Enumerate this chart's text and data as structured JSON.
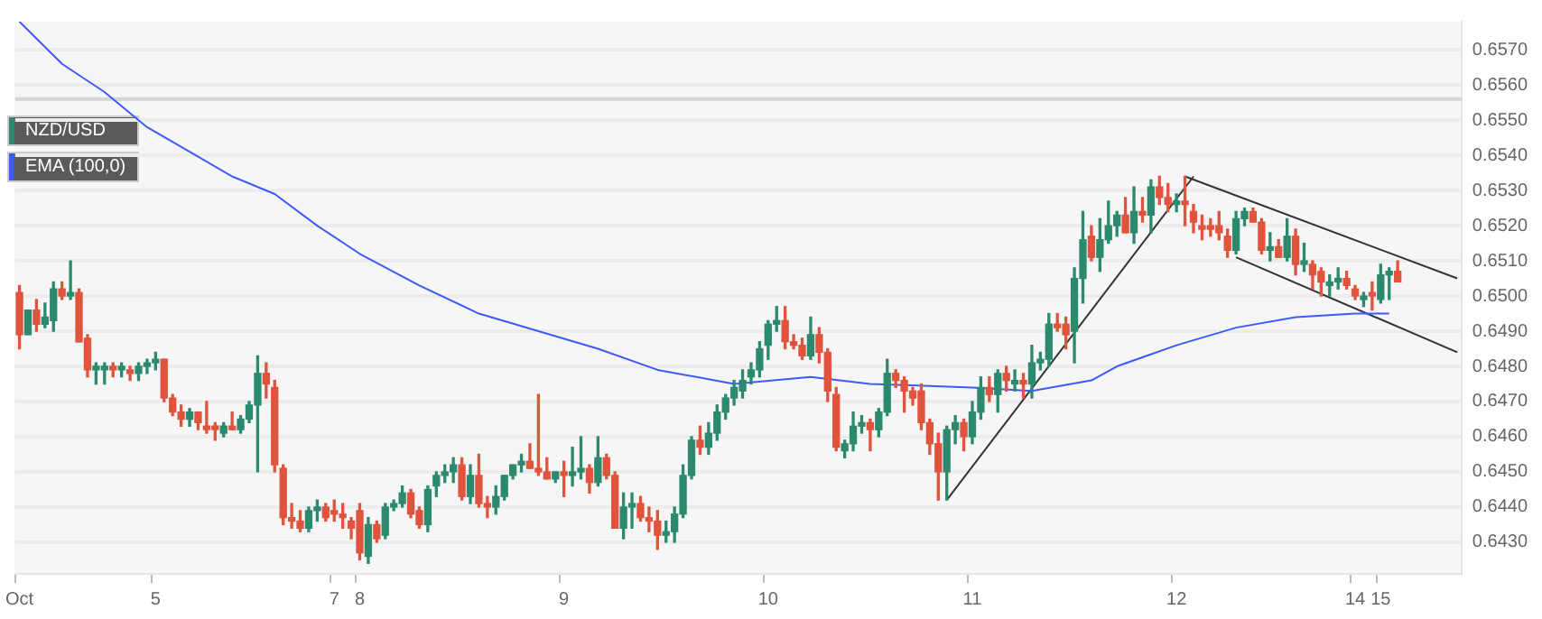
{
  "chart_data": {
    "type": "candlestick",
    "categories": [
      "Oct",
      null,
      null,
      null,
      null,
      null,
      null,
      null,
      null,
      null,
      null,
      null,
      null,
      null,
      null,
      null,
      "5",
      null,
      null,
      null,
      null,
      null,
      null,
      null,
      null,
      null,
      null,
      null,
      null,
      null,
      null,
      null,
      null,
      null,
      null,
      null,
      null,
      "7",
      null,
      null,
      "8",
      null,
      null,
      null,
      null,
      null,
      null,
      null,
      null,
      null,
      null,
      null,
      null,
      null,
      null,
      null,
      null,
      null,
      null,
      null,
      null,
      null,
      null,
      null,
      "9",
      null,
      null,
      null,
      null,
      null,
      null,
      null,
      null,
      null,
      null,
      null,
      null,
      null,
      null,
      null,
      null,
      null,
      null,
      null,
      null,
      null,
      null,
      null,
      "10",
      null,
      null,
      null,
      null,
      null,
      null,
      null,
      null,
      null,
      null,
      null,
      null,
      null,
      null,
      null,
      null,
      null,
      null,
      null,
      null,
      null,
      null,
      null,
      "11",
      null,
      null,
      null,
      null,
      null,
      null,
      null,
      null,
      null,
      null,
      null,
      null,
      null,
      null,
      null,
      null,
      null,
      null,
      null,
      null,
      null,
      null,
      null,
      "12",
      null,
      null,
      null,
      null,
      null,
      null,
      null,
      null,
      null,
      null,
      null,
      null,
      null,
      null,
      null,
      null,
      null,
      null,
      null,
      null,
      "14",
      null,
      null,
      "15",
      null,
      null,
      null,
      null,
      null,
      null,
      null,
      null,
      null
    ],
    "series": [
      {
        "name": "NZD/USD",
        "type": "candlestick",
        "color": "#2b8a6e",
        "colors": [
          "#e0533d",
          "#2b8a6e",
          "#e0533d",
          "#2b8a6e",
          "#2b8a6e",
          "#e0533d",
          "#2b8a6e",
          "#e0533d",
          "#e0533d",
          "#2b8a6e",
          "#2b8a6e",
          "#e0533d",
          "#2b8a6e",
          "#e0533d",
          "#2b8a6e",
          "#2b8a6e",
          "#2b8a6e",
          "#e0533d",
          "#e0533d",
          "#e0533d",
          "#2b8a6e",
          "#e0533d",
          "#e0533d",
          "#e0533d",
          "#2b8a6e",
          "#e0533d",
          "#2b8a6e",
          "#2b8a6e",
          "#2b8a6e",
          "#e0533d",
          "#e0533d",
          "#e0533d",
          "#e0533d",
          "#e0533d",
          "#2b8a6e",
          "#2b8a6e",
          "#e0533d",
          "#e0533d",
          "#e0533d",
          "#e0533d",
          "#e0533d",
          "#2b8a6e",
          "#e0533d",
          "#2b8a6e",
          "#2b8a6e",
          "#2b8a6e",
          "#e0533d",
          "#e0533d",
          "#2b8a6e",
          "#2b8a6e",
          "#2b8a6e",
          "#2b8a6e",
          "#e0533d",
          "#2b8a6e",
          "#e0533d",
          "#e0533d",
          "#2b8a6e",
          "#2b8a6e",
          "#2b8a6e",
          "#2b8a6e",
          "#e0533d",
          "#e0533d",
          "#e0533d",
          "#2b8a6e",
          "#e0533d",
          "#2b8a6e",
          "#2b8a6e",
          "#e0533d",
          "#2b8a6e",
          "#e0533d",
          "#e0533d",
          "#2b8a6e",
          "#2b8a6e",
          "#e0533d",
          "#e0533d",
          "#e0533d",
          "#2b8a6e",
          "#2b8a6e",
          "#2b8a6e",
          "#2b8a6e",
          "#e0533d",
          "#2b8a6e",
          "#2b8a6e",
          "#2b8a6e",
          "#2b8a6e",
          "#2b8a6e",
          "#2b8a6e",
          "#2b8a6e",
          "#2b8a6e",
          "#2b8a6e",
          "#e0533d",
          "#e0533d",
          "#e0533d",
          "#2b8a6e",
          "#e0533d",
          "#e0533d",
          "#e0533d",
          "#2b8a6e",
          "#2b8a6e",
          "#2b8a6e",
          "#e0533d",
          "#2b8a6e",
          "#2b8a6e",
          "#e0533d",
          "#e0533d",
          "#e0533d",
          "#e0533d",
          "#e0533d",
          "#e0533d",
          "#2b8a6e",
          "#2b8a6e",
          "#e0533d",
          "#2b8a6e",
          "#2b8a6e",
          "#e0533d",
          "#2b8a6e",
          "#e0533d",
          "#2b8a6e",
          "#e0533d",
          "#2b8a6e",
          "#2b8a6e",
          "#2b8a6e",
          "#e0533d",
          "#e0533d",
          "#2b8a6e",
          "#2b8a6e",
          "#e0533d",
          "#2b8a6e",
          "#2b8a6e",
          "#2b8a6e",
          "#e0533d",
          "#2b8a6e",
          "#e0533d",
          "#2b8a6e",
          "#e0533d",
          "#e0533d",
          "#2b8a6e",
          "#e0533d",
          "#e0533d",
          "#e0533d",
          "#e0533d",
          "#e0533d",
          "#e0533d",
          "#2b8a6e",
          "#2b8a6e",
          "#e0533d",
          "#e0533d",
          "#2b8a6e",
          "#e0533d",
          "#2b8a6e",
          "#e0533d",
          "#2b8a6e",
          "#e0533d",
          "#e0533d",
          "#2b8a6e",
          "#2b8a6e",
          "#e0533d",
          "#e0533d",
          "#2b8a6e",
          "#e0533d",
          "#2b8a6e",
          "#2b8a6e",
          "#e0533d",
          null,
          null,
          null,
          null,
          null,
          null,
          null
        ],
        "ohlc": [
          [
            0.6501,
            0.6503,
            0.6485,
            0.6489
          ],
          [
            0.6489,
            0.6496,
            0.6489,
            0.6496
          ],
          [
            0.6496,
            0.6499,
            0.649,
            0.6492
          ],
          [
            0.6492,
            0.6498,
            0.6491,
            0.6494
          ],
          [
            0.6493,
            0.6504,
            0.649,
            0.6502
          ],
          [
            0.6502,
            0.6504,
            0.6499,
            0.65
          ],
          [
            0.65,
            0.651,
            0.6499,
            0.6501
          ],
          [
            0.6501,
            0.6502,
            0.6487,
            0.6487
          ],
          [
            0.6488,
            0.6489,
            0.6477,
            0.6479
          ],
          [
            0.6479,
            0.6481,
            0.6475,
            0.648
          ],
          [
            0.6479,
            0.6481,
            0.6475,
            0.648
          ],
          [
            0.648,
            0.6481,
            0.6477,
            0.6479
          ],
          [
            0.6479,
            0.6481,
            0.6477,
            0.648
          ],
          [
            0.6479,
            0.648,
            0.6476,
            0.6478
          ],
          [
            0.6478,
            0.6481,
            0.6476,
            0.648
          ],
          [
            0.648,
            0.6482,
            0.6478,
            0.6481
          ],
          [
            0.6481,
            0.6484,
            0.6479,
            0.6482
          ],
          [
            0.6482,
            0.6482,
            0.647,
            0.6471
          ],
          [
            0.6471,
            0.6472,
            0.6466,
            0.6467
          ],
          [
            0.6467,
            0.6469,
            0.6463,
            0.6465
          ],
          [
            0.6465,
            0.6468,
            0.6463,
            0.6467
          ],
          [
            0.6467,
            0.6467,
            0.6462,
            0.6464
          ],
          [
            0.6463,
            0.647,
            0.6461,
            0.6462
          ],
          [
            0.6463,
            0.6464,
            0.6459,
            0.6462
          ],
          [
            0.6461,
            0.6464,
            0.646,
            0.6463
          ],
          [
            0.6463,
            0.6467,
            0.6462,
            0.6462
          ],
          [
            0.6462,
            0.6466,
            0.6461,
            0.6465
          ],
          [
            0.6465,
            0.647,
            0.6464,
            0.6469
          ],
          [
            0.6469,
            0.6483,
            0.645,
            0.6478
          ],
          [
            0.6478,
            0.6481,
            0.6471,
            0.6475
          ],
          [
            0.6474,
            0.6476,
            0.645,
            0.6452
          ],
          [
            0.6451,
            0.6452,
            0.6435,
            0.6437
          ],
          [
            0.6437,
            0.6441,
            0.6434,
            0.6436
          ],
          [
            0.6436,
            0.6439,
            0.6433,
            0.6434
          ],
          [
            0.6434,
            0.644,
            0.6433,
            0.6439
          ],
          [
            0.6439,
            0.6442,
            0.6436,
            0.644
          ],
          [
            0.644,
            0.6441,
            0.6436,
            0.6437
          ],
          [
            0.6439,
            0.6442,
            0.6436,
            0.6438
          ],
          [
            0.6438,
            0.6441,
            0.6434,
            0.6437
          ],
          [
            0.6436,
            0.6437,
            0.6431,
            0.6434
          ],
          [
            0.6439,
            0.6441,
            0.6425,
            0.6427
          ],
          [
            0.6426,
            0.6437,
            0.6424,
            0.6435
          ],
          [
            0.6435,
            0.6436,
            0.643,
            0.6431
          ],
          [
            0.6432,
            0.6441,
            0.6431,
            0.644
          ],
          [
            0.644,
            0.6442,
            0.6439,
            0.6441
          ],
          [
            0.6441,
            0.6446,
            0.644,
            0.6444
          ],
          [
            0.6444,
            0.6445,
            0.6437,
            0.6438
          ],
          [
            0.6439,
            0.644,
            0.6434,
            0.6435
          ],
          [
            0.6435,
            0.6446,
            0.6433,
            0.6445
          ],
          [
            0.6446,
            0.645,
            0.6443,
            0.6449
          ],
          [
            0.6449,
            0.6452,
            0.6447,
            0.645
          ],
          [
            0.645,
            0.6454,
            0.6447,
            0.6452
          ],
          [
            0.6452,
            0.6454,
            0.6442,
            0.6443
          ],
          [
            0.6443,
            0.6452,
            0.6441,
            0.6449
          ],
          [
            0.6449,
            0.6455,
            0.644,
            0.6441
          ],
          [
            0.6441,
            0.6443,
            0.6437,
            0.644
          ],
          [
            0.644,
            0.6446,
            0.6438,
            0.6443
          ],
          [
            0.6443,
            0.6449,
            0.6442,
            0.6449
          ],
          [
            0.6449,
            0.6452,
            0.6448,
            0.6452
          ],
          [
            0.6452,
            0.6455,
            0.645,
            0.6453
          ],
          [
            0.6453,
            0.6458,
            0.6451,
            0.6451
          ],
          [
            0.6451,
            0.6472,
            0.6449,
            0.645
          ],
          [
            0.645,
            0.6454,
            0.6448,
            0.6448
          ],
          [
            0.6448,
            0.645,
            0.6447,
            0.645
          ],
          [
            0.645,
            0.6453,
            0.6443,
            0.6449
          ],
          [
            0.6449,
            0.6457,
            0.6446,
            0.645
          ],
          [
            0.645,
            0.646,
            0.6448,
            0.6451
          ],
          [
            0.6451,
            0.6452,
            0.6444,
            0.6447
          ],
          [
            0.6447,
            0.646,
            0.6446,
            0.6454
          ],
          [
            0.6454,
            0.6455,
            0.6448,
            0.6449
          ],
          [
            0.6449,
            0.645,
            0.6434,
            0.6434
          ],
          [
            0.6434,
            0.6444,
            0.6431,
            0.644
          ],
          [
            0.644,
            0.6444,
            0.6434,
            0.6441
          ],
          [
            0.6441,
            0.6443,
            0.6436,
            0.6437
          ],
          [
            0.6437,
            0.644,
            0.6433,
            0.6436
          ],
          [
            0.6436,
            0.6439,
            0.6428,
            0.6432
          ],
          [
            0.6432,
            0.6436,
            0.643,
            0.6433
          ],
          [
            0.6433,
            0.644,
            0.643,
            0.6438
          ],
          [
            0.6438,
            0.6452,
            0.6437,
            0.6449
          ],
          [
            0.6449,
            0.646,
            0.6448,
            0.6459
          ],
          [
            0.6459,
            0.6463,
            0.6455,
            0.6457
          ],
          [
            0.6457,
            0.6464,
            0.6455,
            0.6461
          ],
          [
            0.6461,
            0.6469,
            0.6459,
            0.6467
          ],
          [
            0.6467,
            0.6472,
            0.6465,
            0.6471
          ],
          [
            0.6471,
            0.6476,
            0.6469,
            0.6474
          ],
          [
            0.6473,
            0.6479,
            0.6471,
            0.6476
          ],
          [
            0.6477,
            0.6481,
            0.6475,
            0.6479
          ],
          [
            0.6479,
            0.6487,
            0.6477,
            0.6485
          ],
          [
            0.6486,
            0.6493,
            0.6482,
            0.6492
          ],
          [
            0.6492,
            0.6497,
            0.649,
            0.6493
          ],
          [
            0.6493,
            0.6497,
            0.6485,
            0.6487
          ],
          [
            0.6487,
            0.6489,
            0.6485,
            0.6486
          ],
          [
            0.6486,
            0.6488,
            0.6482,
            0.6483
          ],
          [
            0.6483,
            0.6494,
            0.6482,
            0.6489
          ],
          [
            0.6489,
            0.6491,
            0.6481,
            0.6484
          ],
          [
            0.6484,
            0.6485,
            0.647,
            0.6473
          ],
          [
            0.6472,
            0.6474,
            0.6456,
            0.6457
          ],
          [
            0.6456,
            0.6459,
            0.6454,
            0.6458
          ],
          [
            0.6458,
            0.6467,
            0.6456,
            0.6463
          ],
          [
            0.6463,
            0.6466,
            0.6461,
            0.6464
          ],
          [
            0.6464,
            0.6465,
            0.6456,
            0.6462
          ],
          [
            0.6462,
            0.6468,
            0.646,
            0.6467
          ],
          [
            0.6467,
            0.6482,
            0.6466,
            0.6478
          ],
          [
            0.6478,
            0.6479,
            0.6474,
            0.6476
          ],
          [
            0.6476,
            0.6477,
            0.6467,
            0.6473
          ],
          [
            0.6473,
            0.6474,
            0.6469,
            0.6471
          ],
          [
            0.6473,
            0.6475,
            0.6462,
            0.6464
          ],
          [
            0.6464,
            0.6465,
            0.6455,
            0.6458
          ],
          [
            0.6458,
            0.6461,
            0.6442,
            0.645
          ],
          [
            0.645,
            0.6463,
            0.6442,
            0.6462
          ],
          [
            0.6462,
            0.6466,
            0.6458,
            0.6464
          ],
          [
            0.6464,
            0.6465,
            0.6456,
            0.646
          ],
          [
            0.646,
            0.647,
            0.6458,
            0.6467
          ],
          [
            0.6467,
            0.6477,
            0.6465,
            0.6474
          ],
          [
            0.6474,
            0.6477,
            0.647,
            0.6472
          ],
          [
            0.6472,
            0.6479,
            0.6467,
            0.6478
          ],
          [
            0.6478,
            0.648,
            0.6473,
            0.6476
          ],
          [
            0.6475,
            0.6479,
            0.6473,
            0.6476
          ],
          [
            0.6476,
            0.6478,
            0.6471,
            0.6475
          ],
          [
            0.6475,
            0.6486,
            0.6471,
            0.6481
          ],
          [
            0.6481,
            0.6484,
            0.6479,
            0.6482
          ],
          [
            0.6482,
            0.6495,
            0.648,
            0.6492
          ],
          [
            0.6492,
            0.6495,
            0.649,
            0.6491
          ],
          [
            0.6492,
            0.6494,
            0.6485,
            0.6489
          ],
          [
            0.649,
            0.6508,
            0.6481,
            0.6505
          ],
          [
            0.6505,
            0.6524,
            0.6498,
            0.6516
          ],
          [
            0.6517,
            0.652,
            0.651,
            0.6511
          ],
          [
            0.6511,
            0.6522,
            0.6507,
            0.6516
          ],
          [
            0.6516,
            0.6527,
            0.6515,
            0.652
          ],
          [
            0.652,
            0.6524,
            0.6517,
            0.6523
          ],
          [
            0.6523,
            0.6528,
            0.6518,
            0.6518
          ],
          [
            0.6518,
            0.6531,
            0.6515,
            0.6524
          ],
          [
            0.6524,
            0.6528,
            0.6521,
            0.6523
          ],
          [
            0.6523,
            0.6533,
            0.6518,
            0.6531
          ],
          [
            0.6531,
            0.6534,
            0.6526,
            0.6528
          ],
          [
            0.6528,
            0.6532,
            0.6524,
            0.6526
          ],
          [
            0.6526,
            0.6529,
            0.6524,
            0.6527
          ],
          [
            0.6527,
            0.6534,
            0.652,
            0.6526
          ],
          [
            0.6524,
            0.6526,
            0.6518,
            0.6521
          ],
          [
            0.652,
            0.6523,
            0.6516,
            0.6519
          ],
          [
            0.652,
            0.6522,
            0.6517,
            0.6519
          ],
          [
            0.652,
            0.6524,
            0.6516,
            0.6518
          ],
          [
            0.6517,
            0.6519,
            0.6511,
            0.6513
          ],
          [
            0.6513,
            0.6524,
            0.6512,
            0.6522
          ],
          [
            0.6522,
            0.6525,
            0.652,
            0.6524
          ],
          [
            0.6524,
            0.6525,
            0.6521,
            0.6521
          ],
          [
            0.6521,
            0.6522,
            0.6512,
            0.6513
          ],
          [
            0.6513,
            0.6518,
            0.651,
            0.6514
          ],
          [
            0.6514,
            0.6516,
            0.6511,
            0.6511
          ],
          [
            0.6511,
            0.6522,
            0.651,
            0.6517
          ],
          [
            0.6517,
            0.6519,
            0.6506,
            0.6509
          ],
          [
            0.6509,
            0.6515,
            0.6507,
            0.651
          ],
          [
            0.6509,
            0.651,
            0.6502,
            0.6506
          ],
          [
            0.6507,
            0.6508,
            0.65,
            0.6504
          ],
          [
            0.6503,
            0.6506,
            0.65,
            0.6504
          ],
          [
            0.6504,
            0.6508,
            0.6502,
            0.6505
          ],
          [
            0.6505,
            0.6507,
            0.6502,
            0.6503
          ],
          [
            0.6502,
            0.6503,
            0.6499,
            0.65
          ],
          [
            0.6499,
            0.6501,
            0.6497,
            0.65
          ],
          [
            0.6501,
            0.6504,
            0.6496,
            0.65
          ],
          [
            0.6499,
            0.6509,
            0.6498,
            0.6506
          ],
          [
            0.6506,
            0.6508,
            0.6499,
            0.6507
          ],
          [
            0.6507,
            0.651,
            0.6504,
            0.6504
          ],
          null,
          null,
          null,
          null,
          null,
          null,
          null
        ]
      },
      {
        "name": "EMA (100,0)",
        "type": "line",
        "color": "#3d5afe",
        "values": [
          0.6578,
          null,
          null,
          null,
          null,
          0.6566,
          null,
          null,
          null,
          null,
          0.6558,
          null,
          null,
          null,
          null,
          0.6548,
          null,
          null,
          null,
          null,
          0.6541,
          null,
          null,
          null,
          null,
          0.6534,
          null,
          null,
          null,
          null,
          0.6529,
          null,
          null,
          null,
          null,
          0.652,
          null,
          null,
          null,
          null,
          0.6512,
          null,
          null,
          null,
          null,
          null,
          null,
          0.6503,
          null,
          null,
          null,
          null,
          null,
          null,
          0.6495,
          null,
          null,
          null,
          null,
          null,
          null,
          0.649,
          null,
          null,
          null,
          null,
          null,
          null,
          0.6485,
          null,
          null,
          null,
          null,
          null,
          null,
          0.6479,
          null,
          null,
          null,
          null,
          null,
          null,
          null,
          null,
          0.6475,
          null,
          null,
          null,
          null,
          null,
          null,
          null,
          null,
          0.6477,
          null,
          null,
          null,
          null,
          null,
          null,
          0.6475,
          null,
          null,
          null,
          null,
          null,
          null,
          null,
          null,
          null,
          null,
          null,
          0.6474,
          null,
          null,
          null,
          null,
          null,
          null,
          0.6473,
          null,
          null,
          null,
          null,
          null,
          null,
          0.6476,
          null,
          null,
          0.648,
          null,
          null,
          null,
          null,
          null,
          null,
          0.6486,
          null,
          null,
          null,
          null,
          null,
          null,
          0.6491,
          null,
          null,
          null,
          null,
          null,
          null,
          0.6494,
          null,
          null,
          null,
          null,
          null,
          null,
          0.6495,
          null,
          null,
          null,
          0.6495,
          null,
          null,
          null,
          null,
          null,
          null,
          null,
          null
        ]
      },
      {
        "type": "line",
        "color": "#333333",
        "values": [
          null,
          null,
          null,
          null,
          null,
          null,
          null,
          null,
          null,
          null,
          null,
          null,
          null,
          null,
          null,
          null,
          null,
          null,
          null,
          null,
          null,
          null,
          null,
          null,
          null,
          null,
          null,
          null,
          null,
          null,
          null,
          null,
          null,
          null,
          null,
          null,
          null,
          null,
          null,
          null,
          null,
          null,
          null,
          null,
          null,
          null,
          null,
          null,
          null,
          null,
          null,
          null,
          null,
          null,
          null,
          null,
          null,
          null,
          null,
          null,
          null,
          null,
          null,
          null,
          null,
          null,
          null,
          null,
          null,
          null,
          null,
          null,
          null,
          null,
          null,
          null,
          null,
          null,
          null,
          null,
          null,
          null,
          null,
          null,
          null,
          null,
          null,
          null,
          null,
          null,
          null,
          null,
          null,
          null,
          null,
          null,
          null,
          null,
          null,
          null,
          null,
          null,
          null,
          null,
          null,
          null,
          null,
          null,
          null,
          0.6442,
          null,
          null,
          null,
          null,
          null,
          null,
          null,
          null,
          null,
          null,
          null,
          null,
          null,
          null,
          null,
          null,
          null,
          null,
          null,
          null,
          null,
          null,
          null,
          null,
          null,
          null,
          null,
          null,
          0.6534,
          null,
          null,
          null,
          null,
          null,
          null,
          null,
          null,
          null,
          null,
          null,
          null,
          null,
          null,
          null,
          null,
          null,
          null,
          null,
          null,
          null,
          null,
          null,
          null,
          null,
          null,
          null,
          null,
          null,
          null,
          null
        ]
      },
      {
        "type": "line",
        "color": "#333333",
        "values": [
          null,
          null,
          null,
          null,
          null,
          null,
          null,
          null,
          null,
          null,
          null,
          null,
          null,
          null,
          null,
          null,
          null,
          null,
          null,
          null,
          null,
          null,
          null,
          null,
          null,
          null,
          null,
          null,
          null,
          null,
          null,
          null,
          null,
          null,
          null,
          null,
          null,
          null,
          null,
          null,
          null,
          null,
          null,
          null,
          null,
          null,
          null,
          null,
          null,
          null,
          null,
          null,
          null,
          null,
          null,
          null,
          null,
          null,
          null,
          null,
          null,
          null,
          null,
          null,
          null,
          null,
          null,
          null,
          null,
          null,
          null,
          null,
          null,
          null,
          null,
          null,
          null,
          null,
          null,
          null,
          null,
          null,
          null,
          null,
          null,
          null,
          null,
          null,
          null,
          null,
          null,
          null,
          null,
          null,
          null,
          null,
          null,
          null,
          null,
          null,
          null,
          null,
          null,
          null,
          null,
          null,
          null,
          null,
          null,
          null,
          null,
          null,
          null,
          null,
          null,
          null,
          null,
          null,
          null,
          null,
          null,
          null,
          null,
          null,
          null,
          null,
          null,
          null,
          null,
          null,
          null,
          null,
          null,
          null,
          null,
          null,
          null,
          0.6534,
          null,
          null,
          null,
          null,
          null,
          null,
          null,
          null,
          null,
          null,
          null,
          null,
          null,
          null,
          null,
          null,
          null,
          null,
          null,
          null,
          null,
          null,
          null,
          null,
          null,
          null,
          null,
          null,
          null,
          null,
          null,
          0.6505
        ]
      },
      {
        "type": "line",
        "color": "#333333",
        "values": [
          null,
          null,
          null,
          null,
          null,
          null,
          null,
          null,
          null,
          null,
          null,
          null,
          null,
          null,
          null,
          null,
          null,
          null,
          null,
          null,
          null,
          null,
          null,
          null,
          null,
          null,
          null,
          null,
          null,
          null,
          null,
          null,
          null,
          null,
          null,
          null,
          null,
          null,
          null,
          null,
          null,
          null,
          null,
          null,
          null,
          null,
          null,
          null,
          null,
          null,
          null,
          null,
          null,
          null,
          null,
          null,
          null,
          null,
          null,
          null,
          null,
          null,
          null,
          null,
          null,
          null,
          null,
          null,
          null,
          null,
          null,
          null,
          null,
          null,
          null,
          null,
          null,
          null,
          null,
          null,
          null,
          null,
          null,
          null,
          null,
          null,
          null,
          null,
          null,
          null,
          null,
          null,
          null,
          null,
          null,
          null,
          null,
          null,
          null,
          null,
          null,
          null,
          null,
          null,
          null,
          null,
          null,
          null,
          null,
          null,
          null,
          null,
          null,
          null,
          null,
          null,
          null,
          null,
          null,
          null,
          null,
          null,
          null,
          null,
          null,
          null,
          null,
          null,
          null,
          null,
          null,
          null,
          null,
          null,
          null,
          null,
          null,
          null,
          null,
          null,
          null,
          null,
          null,
          0.6511,
          null,
          null,
          null,
          null,
          null,
          null,
          null,
          null,
          null,
          null,
          null,
          null,
          null,
          null,
          null,
          null,
          null,
          null,
          null,
          null,
          null,
          null,
          null,
          null,
          null,
          0.6484
        ]
      }
    ],
    "ylim": [
      0.6421,
      0.6578
    ],
    "yticks": [
      {
        "value": 0.643,
        "label": "0.6430"
      },
      {
        "value": 0.644,
        "label": "0.6440"
      },
      {
        "value": 0.645,
        "label": "0.6450"
      },
      {
        "value": 0.646,
        "label": "0.6460"
      },
      {
        "value": 0.647,
        "label": "0.6470"
      },
      {
        "value": 0.648,
        "label": "0.6480"
      },
      {
        "value": 0.649,
        "label": "0.6490"
      },
      {
        "value": 0.65,
        "label": "0.6500"
      },
      {
        "value": 0.651,
        "label": "0.6510"
      },
      {
        "value": 0.652,
        "label": "0.6520"
      },
      {
        "value": 0.653,
        "label": "0.6530"
      },
      {
        "value": 0.654,
        "label": "0.6540"
      },
      {
        "value": 0.655,
        "label": "0.6550"
      },
      {
        "value": 0.656,
        "label": "0.6560"
      },
      {
        "value": 0.657,
        "label": "0.6570"
      }
    ],
    "ref_lines": [
      {
        "axis": "y",
        "value": 0.6556,
        "color": "#d4d4d4"
      }
    ],
    "grid": "y",
    "legend": "top left",
    "marker": "none"
  }
}
